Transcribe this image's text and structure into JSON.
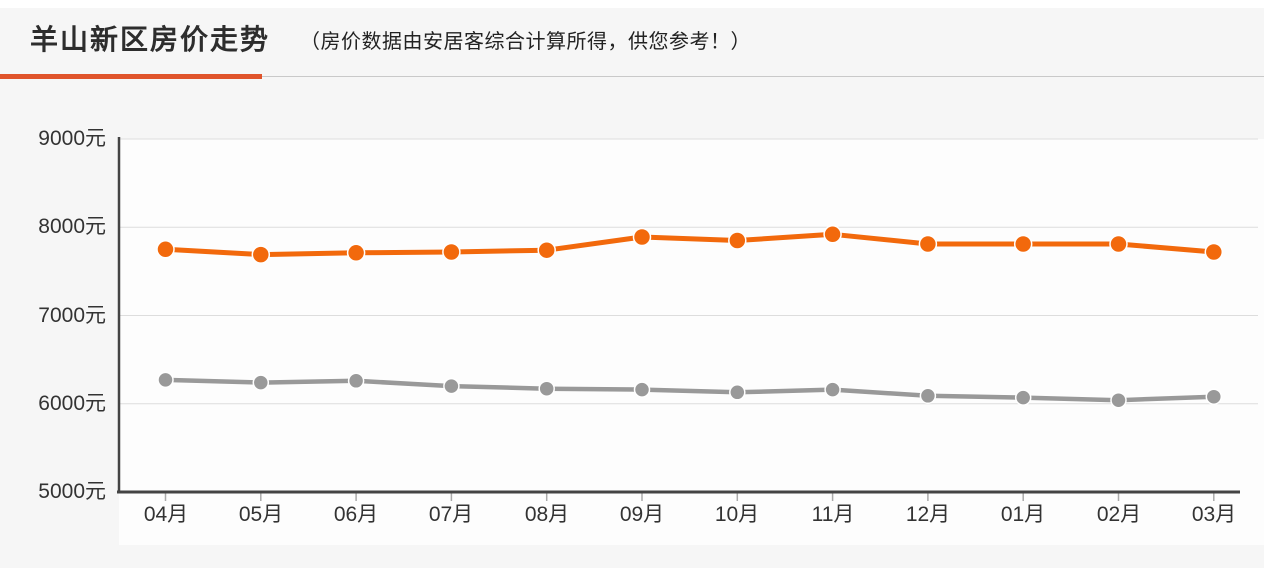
{
  "page": {
    "title": "羊山新区房价走势",
    "subtitle": "（房价数据由安居客综合计算所得，供您参考！）"
  },
  "colors": {
    "accent_underline": "#e0542b",
    "rule_gray": "#c9c9c9",
    "series_orange": "#f2690c",
    "series_gray": "#999999",
    "axis": "#444444",
    "gridline": "#dddddd",
    "tick": "#aaaaaa",
    "label_text": "#333333",
    "plot_background": "#fdfdfd",
    "page_background": "#f6f6f6"
  },
  "chart_data": {
    "type": "line",
    "title": "羊山新区房价走势",
    "categories": [
      "04月",
      "05月",
      "06月",
      "07月",
      "08月",
      "09月",
      "10月",
      "11月",
      "12月",
      "01月",
      "02月",
      "03月"
    ],
    "series": [
      {
        "name": "orange-price-line",
        "color": "#f2690c",
        "values": [
          7750,
          7690,
          7710,
          7720,
          7740,
          7890,
          7850,
          7920,
          7810,
          7810,
          7810,
          7720
        ]
      },
      {
        "name": "gray-price-line",
        "color": "#999999",
        "values": [
          6270,
          6240,
          6260,
          6200,
          6170,
          6160,
          6130,
          6160,
          6090,
          6070,
          6040,
          6080
        ]
      }
    ],
    "ylim": [
      5000,
      9000
    ],
    "y_ticks": [
      9000,
      8000,
      7000,
      6000,
      5000
    ],
    "y_tick_labels": [
      "9000元",
      "8000元",
      "7000元",
      "6000元",
      "5000元"
    ],
    "unit": "元",
    "grid": "horizontal",
    "legend": "none",
    "markers": "circle"
  }
}
